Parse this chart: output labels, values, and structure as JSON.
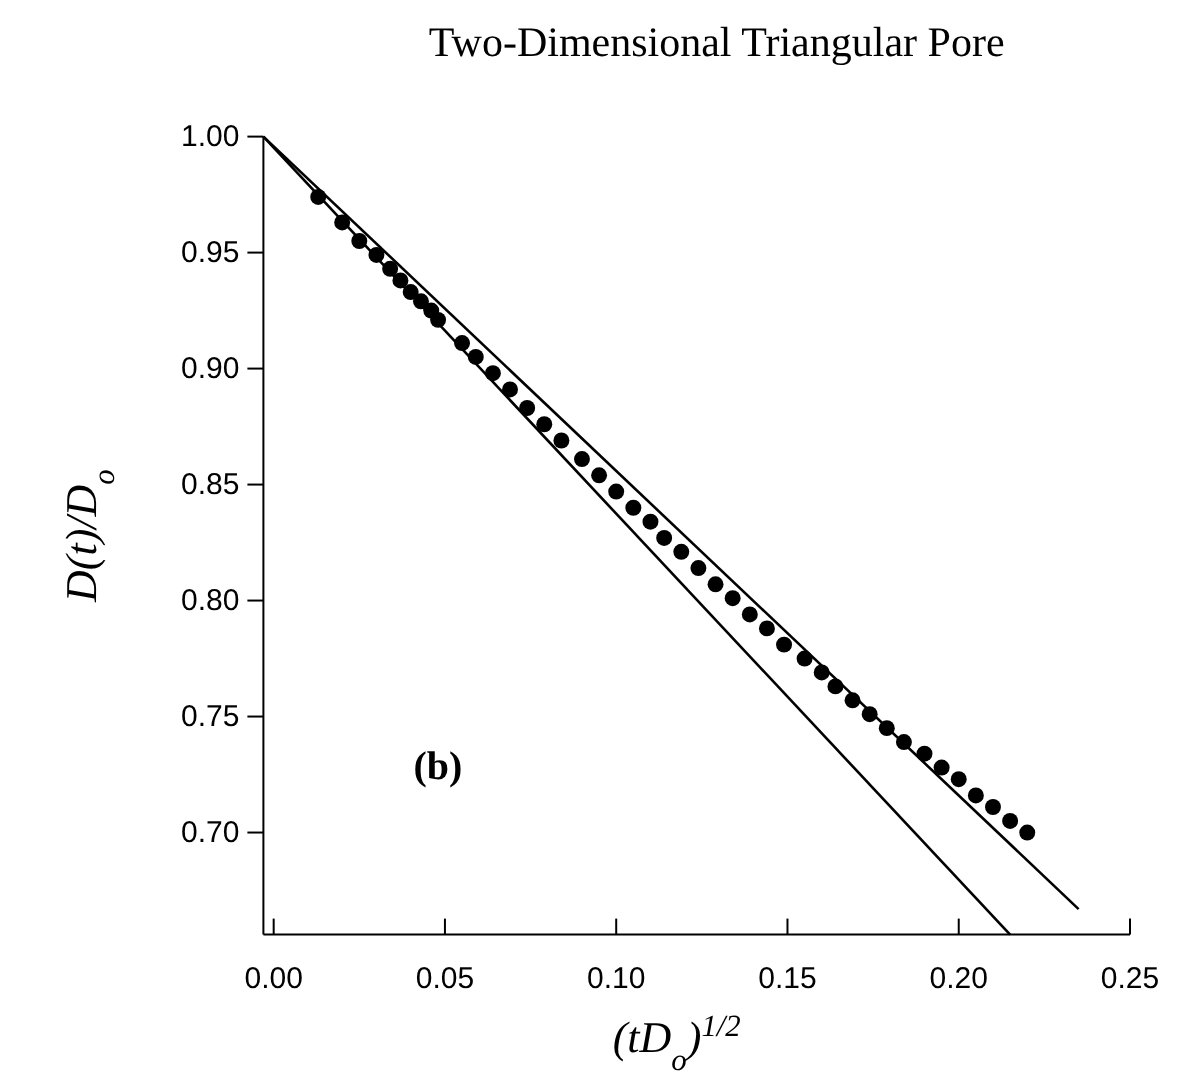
{
  "chart_data": {
    "type": "scatter",
    "title": "Two-Dimensional Triangular Pore",
    "xlabel": "(tD$_{o}$)$^{1/2}$",
    "ylabel": "D(t)/D$_{o}$",
    "annotations": [
      "(b)"
    ],
    "xlim": [
      -0.003,
      0.25
    ],
    "ylim": [
      0.656,
      1.0
    ],
    "xticks": [
      {
        "value": 0,
        "label": "0.00"
      },
      {
        "value": 0.05,
        "label": "0.05"
      },
      {
        "value": 0.1,
        "label": "0.10"
      },
      {
        "value": 0.15,
        "label": "0.15"
      },
      {
        "value": 0.2,
        "label": "0.20"
      },
      {
        "value": 0.25,
        "label": "0.25"
      }
    ],
    "yticks": [
      {
        "value": 0.7,
        "label": "0.70"
      },
      {
        "value": 0.75,
        "label": "0.75"
      },
      {
        "value": 0.8,
        "label": "0.80"
      },
      {
        "value": 0.85,
        "label": "0.85"
      },
      {
        "value": 0.9,
        "label": "0.90"
      },
      {
        "value": 0.95,
        "label": "0.95"
      },
      {
        "value": 1.0,
        "label": "1.00"
      }
    ],
    "grid": false,
    "series": [
      {
        "type": "line",
        "color": "#000000",
        "line_style": "solid",
        "marker": "none",
        "x": [
          -0.003,
          0.215
        ],
        "values": [
          1.0,
          0.656
        ]
      },
      {
        "type": "line",
        "color": "#000000",
        "line_style": "solid",
        "marker": "none",
        "x": [
          -0.003,
          0.235
        ],
        "values": [
          1.0,
          0.667
        ]
      },
      {
        "type": "scatter",
        "color": "#000000",
        "marker": "circle",
        "x": [
          0.013,
          0.02,
          0.025,
          0.03,
          0.034,
          0.037,
          0.04,
          0.043,
          0.046,
          0.048,
          0.055,
          0.059,
          0.064,
          0.069,
          0.074,
          0.079,
          0.084,
          0.09,
          0.095,
          0.1,
          0.105,
          0.11,
          0.114,
          0.119,
          0.124,
          0.129,
          0.134,
          0.139,
          0.144,
          0.149,
          0.155,
          0.16,
          0.164,
          0.169,
          0.174,
          0.179,
          0.184,
          0.19,
          0.195,
          0.2,
          0.205,
          0.21,
          0.215,
          0.22
        ],
        "values": [
          0.974,
          0.963,
          0.955,
          0.949,
          0.943,
          0.938,
          0.933,
          0.929,
          0.925,
          0.921,
          0.911,
          0.905,
          0.898,
          0.891,
          0.883,
          0.876,
          0.869,
          0.861,
          0.854,
          0.847,
          0.84,
          0.834,
          0.827,
          0.821,
          0.814,
          0.807,
          0.801,
          0.794,
          0.788,
          0.781,
          0.775,
          0.769,
          0.763,
          0.757,
          0.751,
          0.745,
          0.739,
          0.734,
          0.728,
          0.723,
          0.716,
          0.711,
          0.705,
          0.7
        ]
      }
    ]
  }
}
